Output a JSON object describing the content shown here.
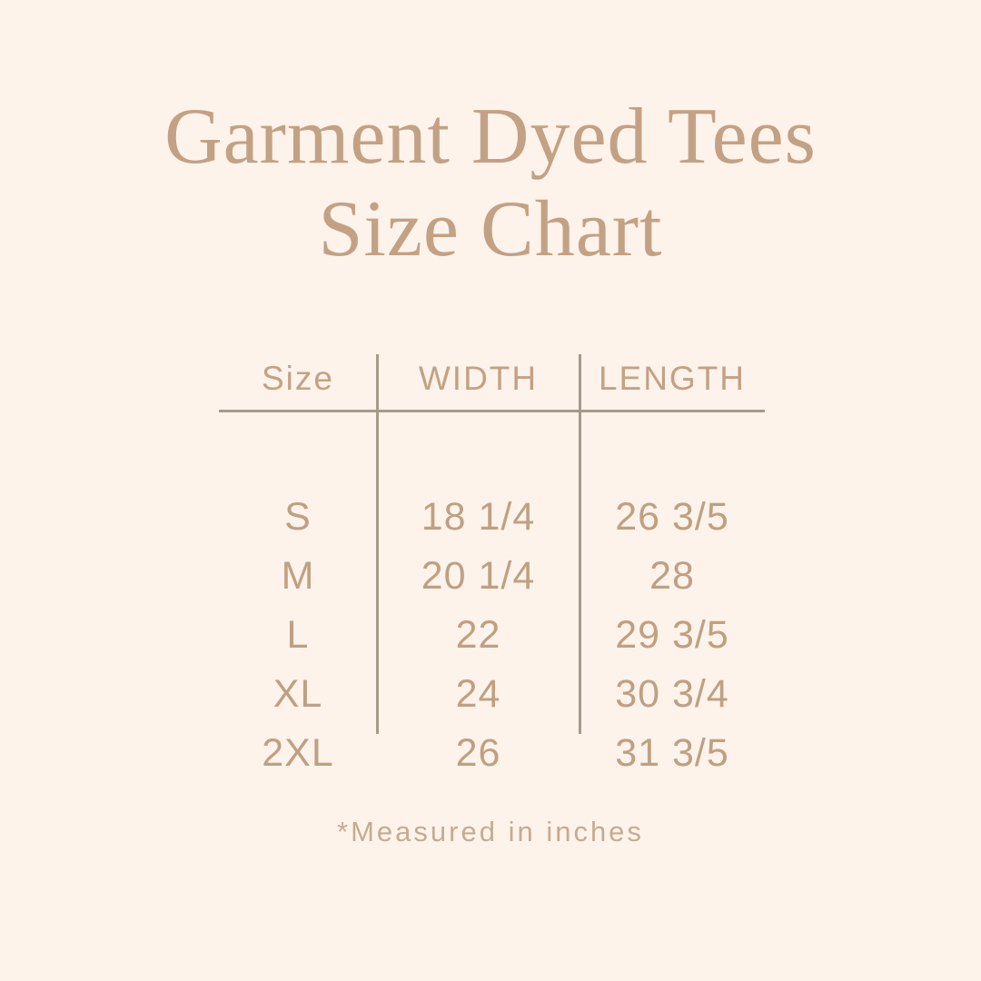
{
  "page": {
    "background_color": "#fdf3ea",
    "accent_color": "#c3a184",
    "line_color": "#a79a8c"
  },
  "title": {
    "line1": "Garment Dyed Tees",
    "line2": "Size Chart"
  },
  "table": {
    "columns": [
      "Size",
      "WIDTH",
      "LENGTH"
    ],
    "rows": [
      {
        "size": "S",
        "width": "18 1/4",
        "length": "26 3/5"
      },
      {
        "size": "M",
        "width": "20 1/4",
        "length": "28"
      },
      {
        "size": "L",
        "width": "22",
        "length": "29 3/5"
      },
      {
        "size": "XL",
        "width": "24",
        "length": "30 3/4"
      },
      {
        "size": "2XL",
        "width": "26",
        "length": "31 3/5"
      }
    ]
  },
  "footnote": "*Measured in inches"
}
